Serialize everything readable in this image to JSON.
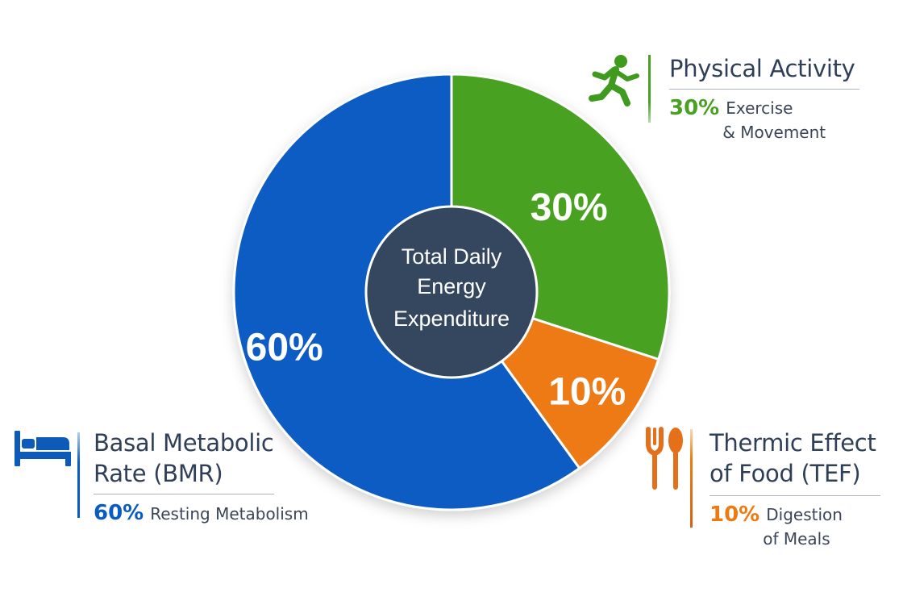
{
  "colors": {
    "bmr": "#0a5bc4",
    "activity": "#49a124",
    "tef": "#ee7a12",
    "center": "#34475f",
    "heading": "#2f3f58"
  },
  "chart_data": {
    "type": "pie",
    "center_label": [
      "Total Daily",
      "Energy",
      "Expenditure"
    ],
    "slices": [
      {
        "name": "Physical Activity",
        "value": 30,
        "label": "30%",
        "color": "#49a124"
      },
      {
        "name": "Thermic Effect of Food (TEF)",
        "value": 10,
        "label": "10%",
        "color": "#ee7a12"
      },
      {
        "name": "Basal Metabolic Rate (BMR)",
        "value": 60,
        "label": "60%",
        "color": "#0a5bc4"
      }
    ]
  },
  "legend": {
    "activity": {
      "title": "Physical Activity",
      "pct": "30%",
      "desc_line1": "Exercise",
      "desc_line2": "& Movement",
      "icon": "running-person-icon"
    },
    "tef": {
      "title_line1": "Thermic Effect",
      "title_line2": "of Food (TEF)",
      "pct": "10%",
      "desc_line1": "Digestion",
      "desc_line2": "of Meals",
      "icon": "fork-and-spoon-icon"
    },
    "bmr": {
      "title_line1": "Basal Metabolic",
      "title_line2": "Rate (BMR)",
      "pct": "60%",
      "desc": "Resting Metabolism",
      "icon": "bed-icon"
    }
  }
}
